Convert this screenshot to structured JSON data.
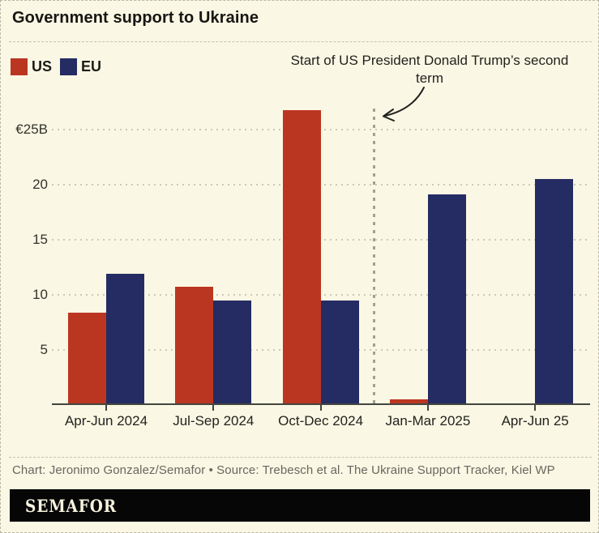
{
  "header": {
    "title": "Government support to Ukraine"
  },
  "annotation": {
    "text": "Start of US President Donald Trump’s second term"
  },
  "credit": "Chart: Jeronimo Gonzalez/Semafor • Source: Trebesch et al. The Ukraine Support Tracker, Kiel WP",
  "footer": {
    "logo_text": "SEMAFOR"
  },
  "colors": {
    "us": "#bb3621",
    "eu": "#242c63",
    "background": "#faf7e4",
    "axis": "#45453f",
    "grid": "#cdc9b7",
    "event_line": "#a3a094"
  },
  "chart_data": {
    "type": "bar",
    "title": "Government support to Ukraine",
    "unit": "EUR billions",
    "categories": [
      "Apr-Jun 2024",
      "Jul-Sep 2024",
      "Oct-Dec 2024",
      "Jan-Mar 2025",
      "Apr-Jun 25"
    ],
    "series": [
      {
        "name": "US",
        "color": "#bb3621",
        "values": [
          8.4,
          10.7,
          26.8,
          0.5,
          0
        ]
      },
      {
        "name": "EU",
        "color": "#242c63",
        "values": [
          11.9,
          9.5,
          9.5,
          19.1,
          20.5
        ]
      }
    ],
    "y_ticks": [
      {
        "value": 5,
        "label": "5"
      },
      {
        "value": 10,
        "label": "10"
      },
      {
        "value": 15,
        "label": "15"
      },
      {
        "value": 20,
        "label": "20"
      },
      {
        "value": 25,
        "label": "€25B"
      }
    ],
    "ylim": [
      0,
      27.5
    ],
    "grid": "horizontal dotted",
    "legend_position": "top-left",
    "annotation": {
      "type": "vline",
      "between": [
        "Oct-Dec 2024",
        "Jan-Mar 2025"
      ],
      "label": "Start of US President Donald Trump’s second term"
    }
  }
}
